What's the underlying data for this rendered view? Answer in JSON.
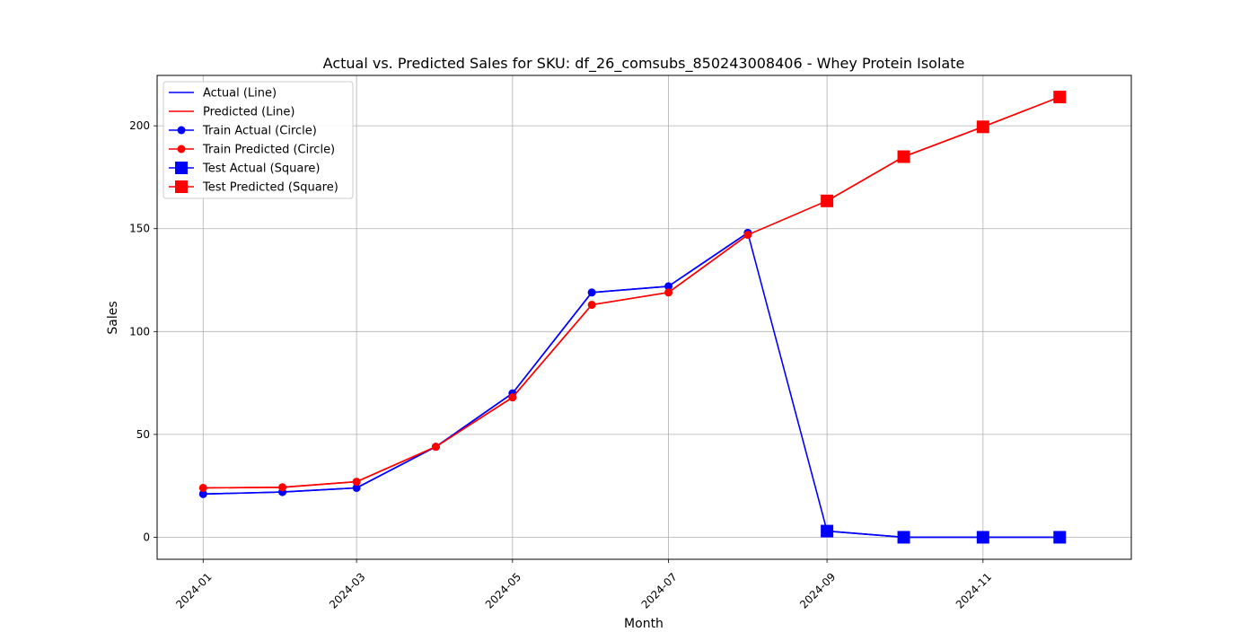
{
  "chart_data": {
    "type": "line",
    "title": "Actual vs. Predicted Sales for SKU: df_26_comsubs_850243008406 - Whey Protein Isolate",
    "xlabel": "Month",
    "ylabel": "Sales",
    "x_ticks": [
      "2024-01",
      "2024-03",
      "2024-05",
      "2024-07",
      "2024-09",
      "2024-11"
    ],
    "y_ticks": [
      0,
      50,
      100,
      150,
      200
    ],
    "ylim": [
      -10.7,
      224.5
    ],
    "xlim": [
      "2023-12-14",
      "2024-12-29"
    ],
    "grid": true,
    "legend_position": "top-left",
    "months": [
      "2024-01",
      "2024-02",
      "2024-03",
      "2024-04",
      "2024-05",
      "2024-06",
      "2024-07",
      "2024-08",
      "2024-09",
      "2024-10",
      "2024-11",
      "2024-12"
    ],
    "train_months": [
      "2024-01",
      "2024-02",
      "2024-03",
      "2024-04",
      "2024-05",
      "2024-06",
      "2024-07",
      "2024-08"
    ],
    "test_months": [
      "2024-09",
      "2024-10",
      "2024-11",
      "2024-12"
    ],
    "series": [
      {
        "name": "Actual (Line)",
        "color": "#0000ff",
        "marker": "none",
        "values": [
          21,
          22,
          24,
          44,
          70,
          119,
          122,
          148,
          3,
          0,
          0,
          0
        ]
      },
      {
        "name": "Predicted (Line)",
        "color": "#ff0000",
        "marker": "none",
        "values": [
          24,
          24.3,
          27,
          44,
          68,
          113,
          119,
          147,
          163.5,
          185,
          199.5,
          214
        ]
      },
      {
        "name": "Train Actual (Circle)",
        "color": "#0000ff",
        "marker": "circle",
        "values": [
          21,
          22,
          24,
          44,
          70,
          119,
          122,
          148
        ]
      },
      {
        "name": "Train Predicted (Circle)",
        "color": "#ff0000",
        "marker": "circle",
        "values": [
          24,
          24.3,
          27,
          44,
          68,
          113,
          119,
          147
        ]
      },
      {
        "name": "Test Actual (Square)",
        "color": "#0000ff",
        "marker": "square",
        "values": [
          3,
          0,
          0,
          0
        ]
      },
      {
        "name": "Test Predicted (Square)",
        "color": "#ff0000",
        "marker": "square",
        "values": [
          163.5,
          185,
          199.5,
          214
        ]
      }
    ]
  }
}
